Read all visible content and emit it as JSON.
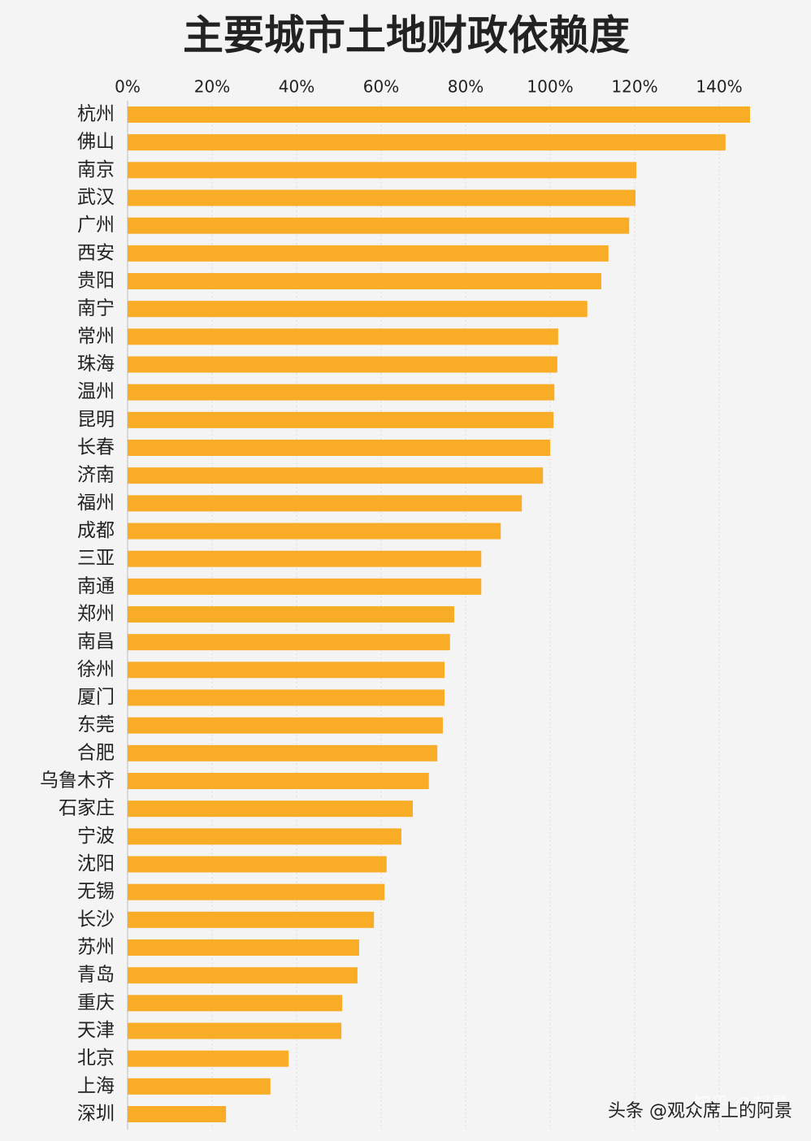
{
  "chart_data": {
    "type": "bar",
    "orientation": "horizontal",
    "title": "主要城市土地财政依赖度",
    "categories": [
      "杭州",
      "佛山",
      "南京",
      "武汉",
      "广州",
      "西安",
      "贵阳",
      "南宁",
      "常州",
      "珠海",
      "温州",
      "昆明",
      "长春",
      "济南",
      "福州",
      "成都",
      "三亚",
      "南通",
      "郑州",
      "南昌",
      "徐州",
      "厦门",
      "东莞",
      "合肥",
      "乌鲁木齐",
      "石家庄",
      "宁波",
      "沈阳",
      "无锡",
      "长沙",
      "苏州",
      "青岛",
      "重庆",
      "天津",
      "北京",
      "上海",
      "深圳"
    ],
    "values": [
      147.3,
      141.5,
      120.4,
      120.2,
      118.7,
      113.8,
      112.1,
      108.8,
      101.9,
      101.7,
      101.0,
      100.8,
      100.0,
      98.3,
      93.3,
      88.3,
      83.7,
      83.7,
      77.3,
      76.3,
      75.0,
      75.0,
      74.6,
      73.3,
      71.3,
      67.5,
      64.8,
      61.3,
      60.8,
      58.3,
      54.8,
      54.4,
      50.8,
      50.6,
      38.1,
      33.8,
      23.3
    ],
    "color": "#f9ad27",
    "xlim": [
      0,
      150
    ],
    "xticks": [
      {
        "value": 0,
        "label": "0%"
      },
      {
        "value": 20,
        "label": "20%"
      },
      {
        "value": 40,
        "label": "40%"
      },
      {
        "value": 60,
        "label": "60%"
      },
      {
        "value": 80,
        "label": "80%"
      },
      {
        "value": 100,
        "label": "100%"
      },
      {
        "value": 120,
        "label": "120%"
      },
      {
        "value": 140,
        "label": "140%"
      }
    ],
    "grid": true,
    "watermarks": [
      "知乎 @郝景",
      "头条 @观众席上的阿景"
    ]
  }
}
